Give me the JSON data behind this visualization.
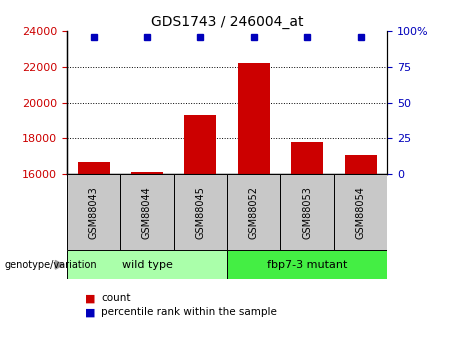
{
  "title": "GDS1743 / 246004_at",
  "samples": [
    "GSM88043",
    "GSM88044",
    "GSM88045",
    "GSM88052",
    "GSM88053",
    "GSM88054"
  ],
  "counts": [
    16700,
    16100,
    19300,
    22200,
    17800,
    17100
  ],
  "ylim_left": [
    16000,
    24000
  ],
  "ylim_right": [
    0,
    100
  ],
  "yticks_left": [
    16000,
    18000,
    20000,
    22000,
    24000
  ],
  "yticks_right": [
    0,
    25,
    50,
    75,
    100
  ],
  "ytick_right_labels": [
    "0",
    "25",
    "50",
    "75",
    "100%"
  ],
  "groups": [
    {
      "label": "wild type",
      "start": 0,
      "end": 3,
      "color": "#aaffaa"
    },
    {
      "label": "fbp7-3 mutant",
      "start": 3,
      "end": 6,
      "color": "#44ee44"
    }
  ],
  "bar_color": "#cc0000",
  "percentile_color": "#0000bb",
  "bar_width": 0.6,
  "grid_color": "black",
  "left_tick_color": "#cc0000",
  "right_tick_color": "#0000bb",
  "sample_box_color": "#c8c8c8",
  "genotype_label": "genotype/variation",
  "legend_count_label": "count",
  "legend_percentile_label": "percentile rank within the sample"
}
